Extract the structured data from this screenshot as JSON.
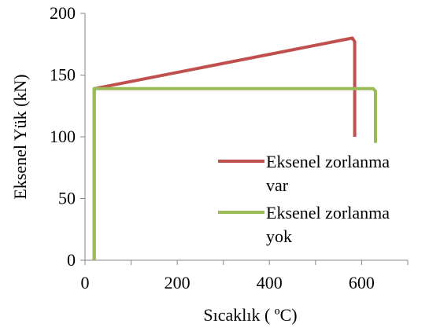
{
  "chart_data": {
    "type": "line",
    "xlabel": "Sıcaklık ( ºC)",
    "ylabel": "Eksenel Yük (kN)",
    "xlim": [
      0,
      700
    ],
    "ylim": [
      0,
      200
    ],
    "x_ticks": [
      0,
      200,
      400,
      600
    ],
    "y_ticks": [
      0,
      50,
      100,
      150,
      200
    ],
    "grid": false,
    "legend_position": "right",
    "series": [
      {
        "name_lines": [
          "Eksenel zorlanma",
          "var"
        ],
        "color": "#c0504d",
        "points": [
          [
            20,
            0
          ],
          [
            20,
            139
          ],
          [
            580,
            180
          ],
          [
            585,
            177
          ],
          [
            585,
            100
          ]
        ]
      },
      {
        "name_lines": [
          "Eksenel zorlanma",
          "yok"
        ],
        "color": "#9bbb59",
        "points": [
          [
            20,
            0
          ],
          [
            20,
            139
          ],
          [
            625,
            139
          ],
          [
            630,
            137
          ],
          [
            630,
            95
          ]
        ]
      }
    ]
  }
}
